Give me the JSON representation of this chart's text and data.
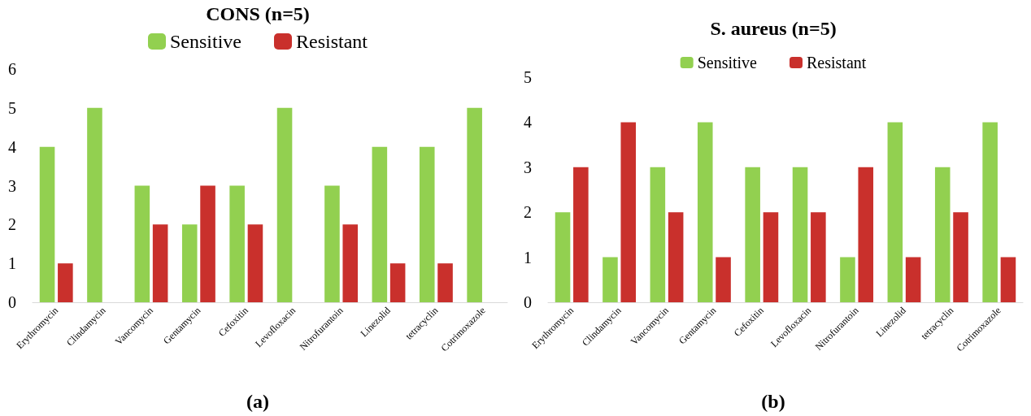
{
  "chart_data": [
    {
      "type": "bar",
      "title": "CONS (n=5)",
      "categories": [
        "Erythromycin",
        "Clindamycin",
        "Vancomycin",
        "Gentamycin",
        "Cefoxitin",
        "Levofloxacin",
        "Nitrofurantoin",
        "Linezolid",
        "tetracyclin",
        "Cotrimoxazole"
      ],
      "series": [
        {
          "name": "Sensitive",
          "color": "#92d050",
          "values": [
            4,
            5,
            3,
            2,
            3,
            5,
            3,
            4,
            4,
            5
          ]
        },
        {
          "name": "Resistant",
          "color": "#c9302c",
          "values": [
            1,
            0,
            2,
            3,
            2,
            0,
            2,
            1,
            1,
            0
          ]
        }
      ],
      "ylim": [
        0,
        6
      ],
      "yticks": [
        0,
        1,
        2,
        3,
        4,
        5,
        6
      ],
      "grid": false,
      "legend": "top",
      "annotations": [
        "(a)"
      ]
    },
    {
      "type": "bar",
      "title": "S. aureus (n=5)",
      "categories": [
        "Erythromycin",
        "Clindamycin",
        "Vancomycin",
        "Gentamycin",
        "Cefoxitin",
        "Levofloxacin",
        "Nitrofurantoin",
        "Linezolid",
        "tetracyclin",
        "Cotrimoxazole"
      ],
      "series": [
        {
          "name": "Sensitive",
          "color": "#92d050",
          "values": [
            2,
            1,
            3,
            4,
            3,
            3,
            1,
            4,
            3,
            4
          ]
        },
        {
          "name": "Resistant",
          "color": "#c9302c",
          "values": [
            3,
            4,
            2,
            1,
            2,
            2,
            3,
            1,
            2,
            1
          ]
        }
      ],
      "ylim": [
        0,
        5
      ],
      "yticks": [
        0,
        1,
        2,
        3,
        4,
        5
      ],
      "grid": false,
      "legend": "top",
      "annotations": [
        "(b)"
      ]
    }
  ]
}
